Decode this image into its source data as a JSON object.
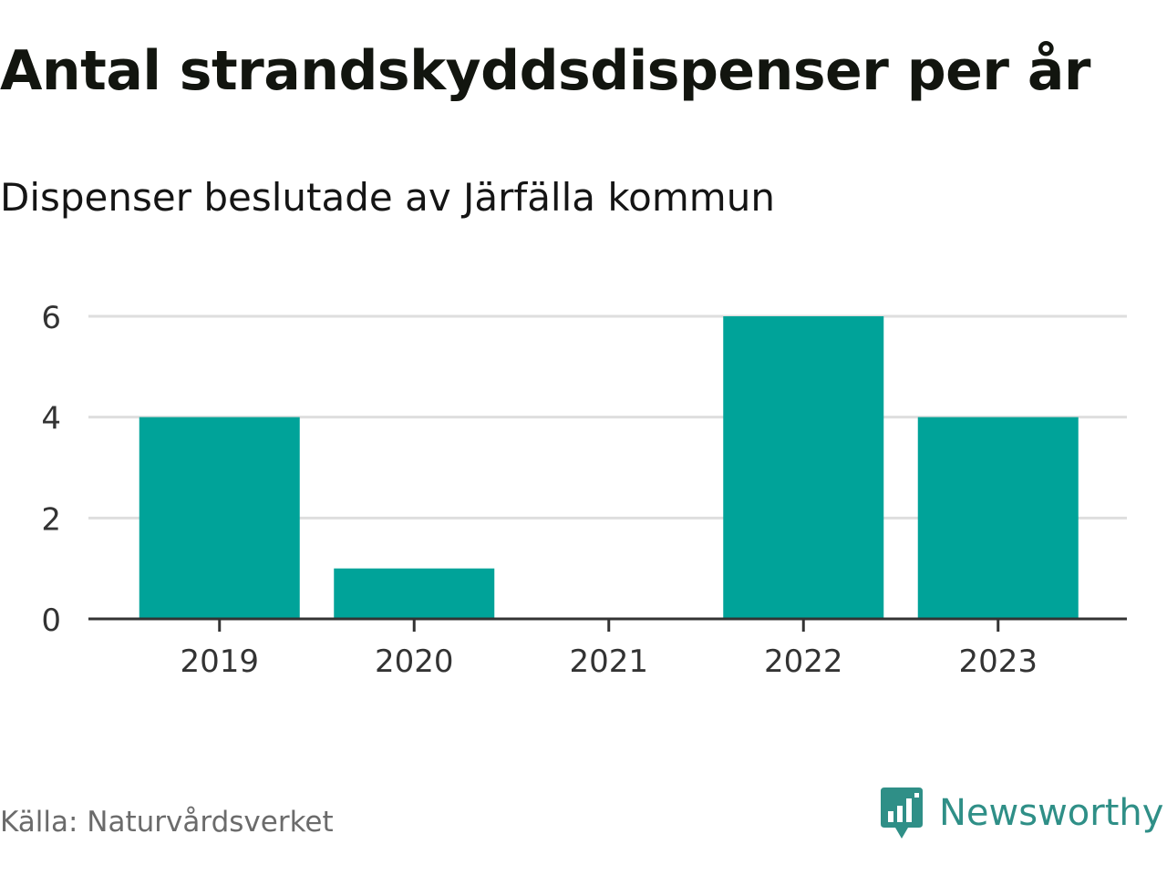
{
  "title": "Antal strandskyddsdispenser per år",
  "subtitle": "Dispenser beslutade av Järfälla kommun",
  "source": "Källa: Naturvårdsverket",
  "brand": "Newsworthy",
  "colors": {
    "bar": "#00a399",
    "grid": "#dedede",
    "axis": "#333333",
    "brand": "#2f8f87"
  },
  "chart_data": {
    "type": "bar",
    "title": "Antal strandskyddsdispenser per år",
    "subtitle": "Dispenser beslutade av Järfälla kommun",
    "xlabel": "",
    "ylabel": "",
    "categories": [
      "2019",
      "2020",
      "2021",
      "2022",
      "2023"
    ],
    "values": [
      4,
      1,
      0,
      6,
      4
    ],
    "ylim": [
      0,
      6
    ],
    "yticks": [
      "0",
      "2",
      "4",
      "6"
    ],
    "grid": true,
    "legend": "none"
  }
}
